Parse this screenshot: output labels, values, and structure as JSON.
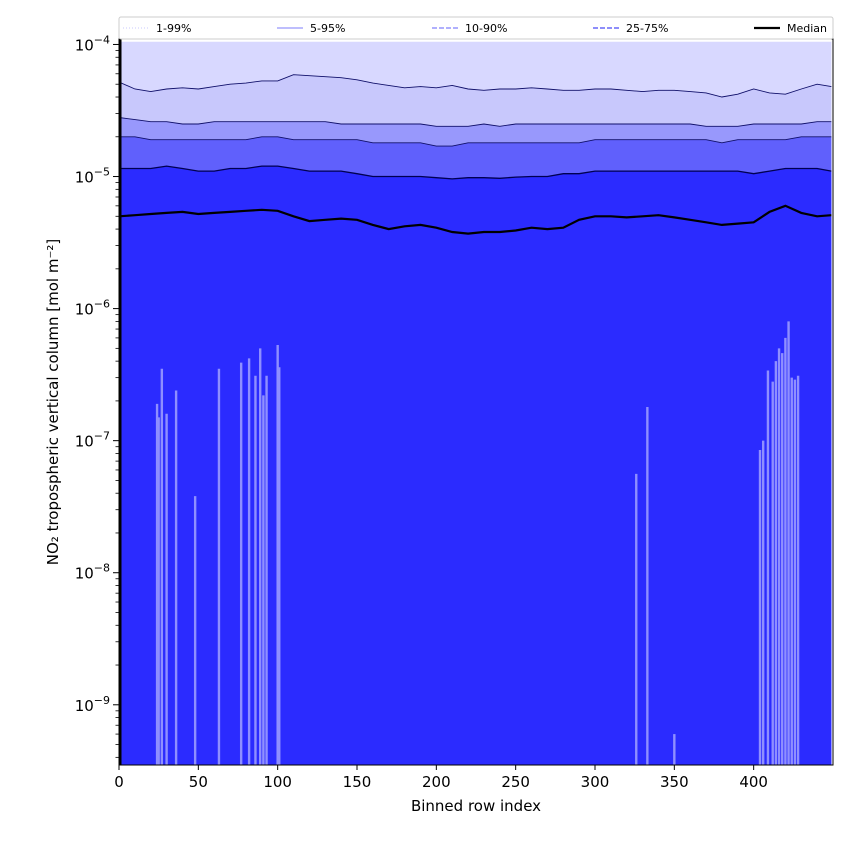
{
  "chart_data": {
    "type": "area",
    "xlabel": "Binned row index",
    "ylabel": "NO₂ tropospheric vertical column [mol m⁻²]",
    "yscale": "log",
    "xlim": [
      0,
      450
    ],
    "ylim": [
      3.5e-10,
      0.00011
    ],
    "grid": false,
    "legend_placement": "top",
    "x_ticks": [
      0,
      50,
      100,
      150,
      200,
      250,
      300,
      350,
      400
    ],
    "y_ticks": [
      {
        "value": 1e-09,
        "base": "10",
        "exp": "−9"
      },
      {
        "value": 1e-08,
        "base": "10",
        "exp": "−8"
      },
      {
        "value": 1e-07,
        "base": "10",
        "exp": "−7"
      },
      {
        "value": 1e-06,
        "base": "10",
        "exp": "−6"
      },
      {
        "value": 1e-05,
        "base": "10",
        "exp": "−5"
      },
      {
        "value": 0.0001,
        "base": "10",
        "exp": "−4"
      }
    ],
    "x": [
      0,
      10,
      20,
      30,
      40,
      50,
      60,
      70,
      80,
      90,
      100,
      110,
      120,
      130,
      140,
      150,
      160,
      170,
      180,
      190,
      200,
      210,
      220,
      230,
      240,
      250,
      260,
      270,
      280,
      290,
      300,
      310,
      320,
      330,
      340,
      350,
      360,
      370,
      380,
      390,
      400,
      410,
      420,
      430,
      440,
      449
    ],
    "series": [
      {
        "name": "1-99%",
        "style": "dotted",
        "color": "#d8d8ff",
        "lower": [
          1e-11,
          1e-11,
          1e-11,
          1e-11,
          1e-11,
          1e-11,
          1e-11,
          1e-11,
          1e-11,
          1e-11,
          1e-11,
          1e-11,
          1e-11,
          1e-11,
          1e-11,
          1e-11,
          1e-11,
          1e-11,
          1e-11,
          1e-11,
          1e-11,
          1e-11,
          1e-11,
          1e-11,
          1e-11,
          1e-11,
          1e-11,
          1e-11,
          1e-11,
          1e-11,
          1e-11,
          1e-11,
          1e-11,
          1e-11,
          1e-11,
          1e-11,
          1e-11,
          1e-11,
          1e-11,
          1e-11,
          1e-11,
          1e-11,
          1e-11,
          1e-11,
          1e-11,
          1e-11
        ],
        "upper": [
          0.000105,
          0.000105,
          0.000105,
          0.000105,
          0.000105,
          0.000105,
          0.000105,
          0.000105,
          0.000105,
          0.000105,
          0.000105,
          0.000105,
          0.000105,
          0.000105,
          0.000105,
          0.000105,
          0.000105,
          0.000105,
          0.000105,
          0.000105,
          0.000105,
          0.000105,
          0.000105,
          0.000105,
          0.000105,
          0.000105,
          0.000105,
          0.000105,
          0.000105,
          0.000105,
          0.000105,
          0.000105,
          0.000105,
          0.000105,
          0.000105,
          0.000105,
          0.000105,
          0.000105,
          0.000105,
          0.000105,
          0.000105,
          0.000105,
          0.000105,
          0.000105,
          0.000105,
          0.000105
        ]
      },
      {
        "name": "5-95%",
        "style": "solid",
        "color": "#c8c8fc",
        "lower": [
          1e-11,
          1e-11,
          1e-11,
          1e-11,
          1e-11,
          1e-11,
          1e-11,
          1e-11,
          1e-11,
          1e-11,
          1e-11,
          1e-11,
          1e-11,
          1e-11,
          1e-11,
          1e-11,
          1e-11,
          1e-11,
          1e-11,
          1e-11,
          1e-11,
          1e-11,
          1e-11,
          1e-11,
          1e-11,
          1e-11,
          1e-11,
          1e-11,
          1e-11,
          1e-11,
          1e-11,
          1e-11,
          1e-11,
          1e-11,
          1e-11,
          1e-11,
          1e-11,
          1e-11,
          1e-11,
          1e-11,
          1e-11,
          1e-11,
          1e-11,
          1e-11,
          1e-11,
          1e-11
        ],
        "upper": [
          5.2e-05,
          4.6e-05,
          4.4e-05,
          4.6e-05,
          4.7e-05,
          4.6e-05,
          4.8e-05,
          5e-05,
          5.1e-05,
          5.3e-05,
          5.3e-05,
          5.9e-05,
          5.8e-05,
          5.7e-05,
          5.6e-05,
          5.4e-05,
          5.1e-05,
          4.9e-05,
          4.7e-05,
          4.8e-05,
          4.7e-05,
          4.9e-05,
          4.6e-05,
          4.5e-05,
          4.6e-05,
          4.6e-05,
          4.7e-05,
          4.6e-05,
          4.5e-05,
          4.5e-05,
          4.6e-05,
          4.6e-05,
          4.5e-05,
          4.4e-05,
          4.5e-05,
          4.5e-05,
          4.4e-05,
          4.3e-05,
          4e-05,
          4.2e-05,
          4.6e-05,
          4.3e-05,
          4.2e-05,
          4.6e-05,
          5e-05,
          4.8e-05
        ]
      },
      {
        "name": "10-90%",
        "style": "dashed",
        "color": "#9898fc",
        "lower": [
          1e-11,
          1e-11,
          1e-11,
          1e-11,
          1e-11,
          1e-11,
          1e-11,
          1e-11,
          1e-11,
          1e-11,
          1e-11,
          1e-11,
          1e-11,
          1e-11,
          1e-11,
          1e-11,
          1e-11,
          1e-11,
          1e-11,
          1e-11,
          1e-11,
          1e-11,
          1e-11,
          1e-11,
          1e-11,
          1e-11,
          1e-11,
          1e-11,
          1e-11,
          1e-11,
          1e-11,
          1e-11,
          1e-11,
          1e-11,
          1e-11,
          1e-11,
          1e-11,
          1e-11,
          1e-11,
          1e-11,
          1e-11,
          1e-11,
          1e-11,
          1e-11,
          1e-11,
          1e-11
        ],
        "upper": [
          2.8e-05,
          2.7e-05,
          2.6e-05,
          2.6e-05,
          2.5e-05,
          2.5e-05,
          2.6e-05,
          2.6e-05,
          2.6e-05,
          2.6e-05,
          2.6e-05,
          2.6e-05,
          2.6e-05,
          2.6e-05,
          2.5e-05,
          2.5e-05,
          2.5e-05,
          2.5e-05,
          2.5e-05,
          2.5e-05,
          2.4e-05,
          2.4e-05,
          2.4e-05,
          2.5e-05,
          2.4e-05,
          2.5e-05,
          2.5e-05,
          2.5e-05,
          2.5e-05,
          2.5e-05,
          2.5e-05,
          2.5e-05,
          2.5e-05,
          2.5e-05,
          2.5e-05,
          2.5e-05,
          2.5e-05,
          2.4e-05,
          2.4e-05,
          2.4e-05,
          2.5e-05,
          2.5e-05,
          2.5e-05,
          2.5e-05,
          2.6e-05,
          2.6e-05
        ]
      },
      {
        "name": "25-75%",
        "style": "dashed",
        "color": "#6060fc",
        "lower": [
          1e-11,
          1e-11,
          1e-11,
          1e-11,
          1e-11,
          1e-11,
          1e-11,
          1e-11,
          1e-11,
          1e-11,
          1e-11,
          1e-11,
          1e-11,
          1e-11,
          1e-11,
          1e-11,
          1e-11,
          1e-11,
          1e-11,
          1e-11,
          1e-11,
          1e-11,
          1e-11,
          1e-11,
          1e-11,
          1e-11,
          1e-11,
          1e-11,
          1e-11,
          1e-11,
          1e-11,
          1e-11,
          1e-11,
          1e-11,
          1e-11,
          1e-11,
          1e-11,
          1e-11,
          1e-11,
          1e-11,
          1e-11,
          1e-11,
          1e-11,
          1e-11,
          1e-11,
          1e-11
        ],
        "upper": [
          2e-05,
          2e-05,
          1.9e-05,
          1.9e-05,
          1.9e-05,
          1.9e-05,
          1.9e-05,
          1.9e-05,
          1.9e-05,
          2e-05,
          2e-05,
          1.9e-05,
          1.9e-05,
          1.9e-05,
          1.9e-05,
          1.9e-05,
          1.8e-05,
          1.8e-05,
          1.8e-05,
          1.8e-05,
          1.7e-05,
          1.7e-05,
          1.8e-05,
          1.8e-05,
          1.8e-05,
          1.8e-05,
          1.8e-05,
          1.8e-05,
          1.8e-05,
          1.8e-05,
          1.9e-05,
          1.9e-05,
          1.9e-05,
          1.9e-05,
          1.9e-05,
          1.9e-05,
          1.9e-05,
          1.9e-05,
          1.8e-05,
          1.9e-05,
          1.9e-05,
          1.9e-05,
          1.9e-05,
          2e-05,
          2e-05,
          2e-05
        ]
      },
      {
        "name": "Median",
        "style": "solid",
        "color": "#000000",
        "values": [
          5e-06,
          5.1e-06,
          5.2e-06,
          5.3e-06,
          5.4e-06,
          5.2e-06,
          5.3e-06,
          5.4e-06,
          5.5e-06,
          5.6e-06,
          5.5e-06,
          5e-06,
          4.6e-06,
          4.7e-06,
          4.8e-06,
          4.7e-06,
          4.3e-06,
          4e-06,
          4.2e-06,
          4.3e-06,
          4.1e-06,
          3.8e-06,
          3.7e-06,
          3.8e-06,
          3.8e-06,
          3.9e-06,
          4.1e-06,
          4e-06,
          4.1e-06,
          4.7e-06,
          5e-06,
          5e-06,
          4.9e-06,
          5e-06,
          5.1e-06,
          4.9e-06,
          4.7e-06,
          4.5e-06,
          4.3e-06,
          4.4e-06,
          4.5e-06,
          5.4e-06,
          6e-06,
          5.3e-06,
          5e-06,
          5.1e-06
        ]
      }
    ],
    "envelope_lines": [
      {
        "level": "25%",
        "values": [
          1.15e-05,
          1.15e-05,
          1.15e-05,
          1.2e-05,
          1.15e-05,
          1.1e-05,
          1.1e-05,
          1.15e-05,
          1.15e-05,
          1.2e-05,
          1.2e-05,
          1.15e-05,
          1.1e-05,
          1.1e-05,
          1.1e-05,
          1.05e-05,
          1e-05,
          1e-05,
          1e-05,
          1e-05,
          9.8e-06,
          9.6e-06,
          9.8e-06,
          9.8e-06,
          9.7e-06,
          9.9e-06,
          1e-05,
          1e-05,
          1.05e-05,
          1.05e-05,
          1.1e-05,
          1.1e-05,
          1.1e-05,
          1.1e-05,
          1.1e-05,
          1.1e-05,
          1.1e-05,
          1.1e-05,
          1.1e-05,
          1.1e-05,
          1.05e-05,
          1.1e-05,
          1.15e-05,
          1.15e-05,
          1.15e-05,
          1.1e-05
        ]
      }
    ],
    "spikes": [
      {
        "x": 24,
        "top": 1.9e-07
      },
      {
        "x": 25,
        "top": 1.5e-07
      },
      {
        "x": 27,
        "top": 3.5e-07
      },
      {
        "x": 30,
        "top": 1.6e-07
      },
      {
        "x": 36,
        "top": 2.4e-07
      },
      {
        "x": 48,
        "top": 3.8e-08
      },
      {
        "x": 63,
        "top": 3.5e-07
      },
      {
        "x": 77,
        "top": 3.9e-07
      },
      {
        "x": 82,
        "top": 4.2e-07
      },
      {
        "x": 86,
        "top": 3.1e-07
      },
      {
        "x": 89,
        "top": 5e-07
      },
      {
        "x": 91,
        "top": 2.2e-07
      },
      {
        "x": 93,
        "top": 3.1e-07
      },
      {
        "x": 100,
        "top": 5.3e-07
      },
      {
        "x": 101,
        "top": 3.6e-07
      },
      {
        "x": 326,
        "top": 5.6e-08
      },
      {
        "x": 333,
        "top": 1.8e-07
      },
      {
        "x": 350,
        "top": 6e-10
      },
      {
        "x": 404,
        "top": 8.5e-08
      },
      {
        "x": 406,
        "top": 1e-07
      },
      {
        "x": 409,
        "top": 3.4e-07
      },
      {
        "x": 412,
        "top": 2.8e-07
      },
      {
        "x": 414,
        "top": 4e-07
      },
      {
        "x": 416,
        "top": 5e-07
      },
      {
        "x": 418,
        "top": 4.6e-07
      },
      {
        "x": 420,
        "top": 6e-07
      },
      {
        "x": 422,
        "top": 8e-07
      },
      {
        "x": 424,
        "top": 3e-07
      },
      {
        "x": 426,
        "top": 2.9e-07
      },
      {
        "x": 428,
        "top": 3.1e-07
      }
    ],
    "legend": [
      {
        "label": "1-99%",
        "style": "dotted",
        "color": "#c8c8fc"
      },
      {
        "label": "5-95%",
        "style": "solid",
        "color": "#9898fc"
      },
      {
        "label": "10-90%",
        "style": "dashed",
        "color": "#8080fc"
      },
      {
        "label": "25-75%",
        "style": "dashed",
        "color": "#4a4af6"
      },
      {
        "label": "Median",
        "style": "solid",
        "color": "#000000"
      }
    ],
    "colors": {
      "fill_core": "#2b2bff",
      "spike": "#8f8fff"
    }
  }
}
